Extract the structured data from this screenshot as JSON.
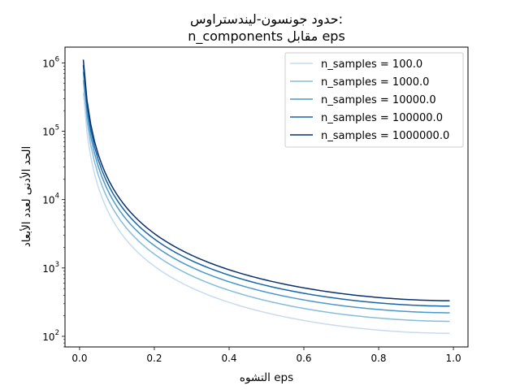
{
  "chart_data": {
    "type": "line",
    "title_lines": [
      "حدود جونسون-ليندستراوس:",
      "n_components مقابل eps"
    ],
    "xlabel": "التشوه eps",
    "ylabel": "الحد الأدنى لعدد الأبعاد",
    "xlim": [
      -0.039,
      1.039
    ],
    "ylim": [
      70,
      1700000
    ],
    "yscale": "log",
    "x_ticks": [
      {
        "value": 0.0,
        "label": "0.0"
      },
      {
        "value": 0.2,
        "label": "0.2"
      },
      {
        "value": 0.4,
        "label": "0.4"
      },
      {
        "value": 0.6,
        "label": "0.6"
      },
      {
        "value": 0.8,
        "label": "0.8"
      },
      {
        "value": 1.0,
        "label": "1.0"
      }
    ],
    "y_ticks": [
      {
        "value": 100,
        "base": "10",
        "exp": "2"
      },
      {
        "value": 1000,
        "base": "10",
        "exp": "3"
      },
      {
        "value": 10000,
        "base": "10",
        "exp": "4"
      },
      {
        "value": 100000,
        "base": "10",
        "exp": "5"
      },
      {
        "value": 1000000,
        "base": "10",
        "exp": "6"
      }
    ],
    "x_range": {
      "start": 0.01,
      "end": 0.99,
      "count": 100
    },
    "series": [
      {
        "name": "n_samples = 100.0",
        "n_samples": 100,
        "color": "#c6dbef"
      },
      {
        "name": "n_samples = 1000.0",
        "n_samples": 1000,
        "color": "#85bcdc"
      },
      {
        "name": "n_samples = 10000.0",
        "n_samples": 10000,
        "color": "#4a98c9"
      },
      {
        "name": "n_samples = 100000.0",
        "n_samples": 100000,
        "color": "#1764ab"
      },
      {
        "name": "n_samples = 1000000.0",
        "n_samples": 1000000,
        "color": "#08306b"
      }
    ],
    "legend_position": "top-right",
    "grid": false
  }
}
